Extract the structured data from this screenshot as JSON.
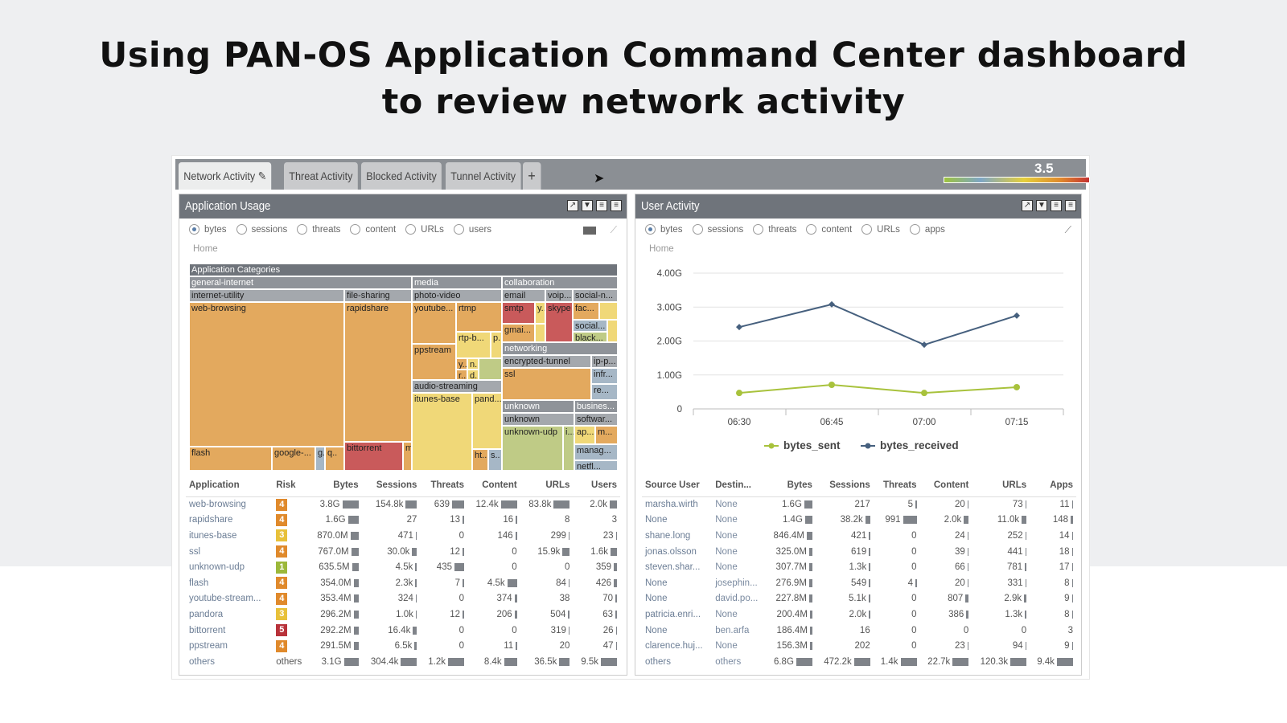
{
  "slide": {
    "title_line1": "Using PAN-OS Application Command Center dashboard",
    "title_line2": "to review network activity"
  },
  "tabs": [
    {
      "label": "Network Activity"
    },
    {
      "label": "Threat Activity"
    },
    {
      "label": "Blocked Activity"
    },
    {
      "label": "Tunnel Activity"
    },
    {
      "label": "+"
    }
  ],
  "risk_gauge": {
    "value": "3.5",
    "level": 3.5,
    "max": 5
  },
  "app_usage": {
    "title": "Application Usage",
    "radios": [
      "bytes",
      "sessions",
      "threats",
      "content",
      "URLs",
      "users"
    ],
    "selected": "bytes",
    "breadcrumb": "Home",
    "treemap": {
      "root": "Application Categories",
      "labels": [
        "general-internet",
        "internet-utility",
        "file-sharing",
        "web-browsing",
        "rapidshare",
        "flash",
        "google-...",
        "g..",
        "q..",
        "bittorrent",
        "m",
        "media",
        "photo-video",
        "youtube...",
        "rtmp",
        "rtp-b...",
        "p..",
        "ppstream",
        "y...",
        "n..",
        "r...",
        "d..",
        "audio-streaming",
        "itunes-base",
        "pand...",
        "ht...",
        "s..",
        "collaboration",
        "email",
        "voip...",
        "social-n...",
        "smtp",
        "y...",
        "skype",
        "fac...",
        "gmai...",
        "social...",
        "black...",
        "networking",
        "encrypted-tunnel",
        "ip-p...",
        "ssl",
        "infr...",
        "re...",
        "unknown",
        "unknown",
        "unknown-udp",
        "i...",
        "busines...",
        "softwar...",
        "ap...",
        "m...",
        "manag...",
        "netfl..."
      ]
    },
    "columns": [
      "Application",
      "Risk",
      "Bytes",
      "Sessions",
      "Threats",
      "Content",
      "URLs",
      "Users"
    ],
    "rows": [
      [
        "web-browsing",
        "4",
        "3.8G",
        "154.8k",
        "639",
        "12.4k",
        "83.8k",
        "2.0k"
      ],
      [
        "rapidshare",
        "4",
        "1.6G",
        "27",
        "13",
        "16",
        "8",
        "3"
      ],
      [
        "itunes-base",
        "3",
        "870.0M",
        "471",
        "0",
        "146",
        "299",
        "23"
      ],
      [
        "ssl",
        "4",
        "767.0M",
        "30.0k",
        "12",
        "0",
        "15.9k",
        "1.6k"
      ],
      [
        "unknown-udp",
        "1",
        "635.5M",
        "4.5k",
        "435",
        "0",
        "0",
        "359"
      ],
      [
        "flash",
        "4",
        "354.0M",
        "2.3k",
        "7",
        "4.5k",
        "84",
        "426"
      ],
      [
        "youtube-stream...",
        "4",
        "353.4M",
        "324",
        "0",
        "374",
        "38",
        "70"
      ],
      [
        "pandora",
        "3",
        "296.2M",
        "1.0k",
        "12",
        "206",
        "504",
        "63"
      ],
      [
        "bittorrent",
        "5",
        "292.2M",
        "16.4k",
        "0",
        "0",
        "319",
        "26"
      ],
      [
        "ppstream",
        "4",
        "291.5M",
        "6.5k",
        "0",
        "11",
        "20",
        "47"
      ],
      [
        "others",
        "others",
        "3.1G",
        "304.4k",
        "1.2k",
        "8.4k",
        "36.5k",
        "9.5k"
      ]
    ],
    "risk_colors": {
      "1": "#9cb83a",
      "3": "#e8c13a",
      "4": "#e08a2c",
      "5": "#b8323a"
    }
  },
  "user_activity": {
    "title": "User Activity",
    "radios": [
      "bytes",
      "sessions",
      "threats",
      "content",
      "URLs",
      "apps"
    ],
    "selected": "bytes",
    "breadcrumb": "Home",
    "columns": [
      "Source User",
      "Destin...",
      "Bytes",
      "Sessions",
      "Threats",
      "Content",
      "URLs",
      "Apps"
    ],
    "rows": [
      [
        "marsha.wirth",
        "None",
        "1.6G",
        "217",
        "5",
        "20",
        "73",
        "11"
      ],
      [
        "None",
        "None",
        "1.4G",
        "38.2k",
        "991",
        "2.0k",
        "11.0k",
        "148"
      ],
      [
        "shane.long",
        "None",
        "846.4M",
        "421",
        "0",
        "24",
        "252",
        "14"
      ],
      [
        "jonas.olsson",
        "None",
        "325.0M",
        "619",
        "0",
        "39",
        "441",
        "18"
      ],
      [
        "steven.shar...",
        "None",
        "307.7M",
        "1.3k",
        "0",
        "66",
        "781",
        "17"
      ],
      [
        "None",
        "josephin...",
        "276.9M",
        "549",
        "4",
        "20",
        "331",
        "8"
      ],
      [
        "None",
        "david.po...",
        "227.8M",
        "5.1k",
        "0",
        "807",
        "2.9k",
        "9"
      ],
      [
        "patricia.enri...",
        "None",
        "200.4M",
        "2.0k",
        "0",
        "386",
        "1.3k",
        "8"
      ],
      [
        "None",
        "ben.arfa",
        "186.4M",
        "16",
        "0",
        "0",
        "0",
        "3"
      ],
      [
        "clarence.huj...",
        "None",
        "156.3M",
        "202",
        "0",
        "23",
        "94",
        "9"
      ],
      [
        "others",
        "others",
        "6.8G",
        "472.2k",
        "1.4k",
        "22.7k",
        "120.3k",
        "9.4k"
      ]
    ]
  },
  "chart_data": {
    "type": "line",
    "x": [
      "06:30",
      "06:45",
      "07:00",
      "07:15"
    ],
    "y_ticks": [
      "0",
      "1.00G",
      "2.00G",
      "3.00G",
      "4.00G"
    ],
    "ylim": [
      0,
      4
    ],
    "y_unit": "G",
    "grid": true,
    "legend": "bottom",
    "series": [
      {
        "name": "bytes_sent",
        "color": "#a8c23c",
        "values": [
          0.47,
          0.71,
          0.47,
          0.64
        ]
      },
      {
        "name": "bytes_received",
        "color": "#46607e",
        "values": [
          2.41,
          3.08,
          1.89,
          2.75
        ]
      }
    ]
  }
}
